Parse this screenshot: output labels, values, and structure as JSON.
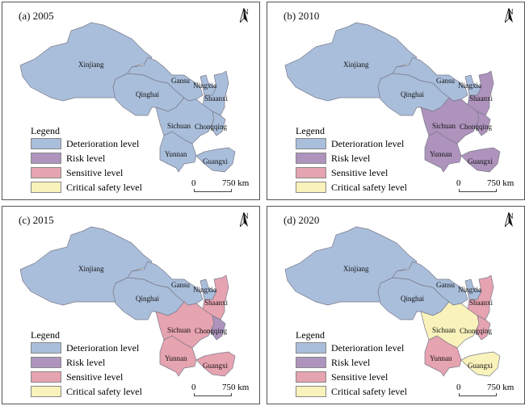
{
  "colors": {
    "deterioration": "#a9bedb",
    "risk": "#ae93bd",
    "sensitive": "#e6a3b0",
    "critical": "#f9f2ba"
  },
  "legend": {
    "title": "Legend",
    "items": [
      {
        "key": "deterioration",
        "label": "Deterioration level"
      },
      {
        "key": "risk",
        "label": "Risk level"
      },
      {
        "key": "sensitive",
        "label": "Sensitive level"
      },
      {
        "key": "critical",
        "label": "Critical safety level"
      }
    ]
  },
  "scale": {
    "zero": "0",
    "distance": "750 km"
  },
  "north_label": "N",
  "provinces": [
    "Xinjiang",
    "Qinghai",
    "Gansu",
    "Ningxia",
    "Shaanxi",
    "Sichuan",
    "Chongqing",
    "Yunnan",
    "Guangxi"
  ],
  "panels": [
    {
      "title": "(a) 2005",
      "levels": {
        "Xinjiang": "deterioration",
        "Qinghai": "deterioration",
        "Gansu": "deterioration",
        "Ningxia": "deterioration",
        "Shaanxi": "deterioration",
        "Sichuan": "deterioration",
        "Chongqing": "deterioration",
        "Yunnan": "deterioration",
        "Guangxi": "deterioration"
      }
    },
    {
      "title": "(b) 2010",
      "levels": {
        "Xinjiang": "deterioration",
        "Qinghai": "deterioration",
        "Gansu": "deterioration",
        "Ningxia": "deterioration",
        "Shaanxi": "risk",
        "Sichuan": "risk",
        "Chongqing": "risk",
        "Yunnan": "risk",
        "Guangxi": "risk"
      }
    },
    {
      "title": "(c) 2015",
      "levels": {
        "Xinjiang": "deterioration",
        "Qinghai": "deterioration",
        "Gansu": "deterioration",
        "Ningxia": "deterioration",
        "Shaanxi": "sensitive",
        "Sichuan": "sensitive",
        "Chongqing": "risk",
        "Yunnan": "sensitive",
        "Guangxi": "sensitive"
      }
    },
    {
      "title": "(d) 2020",
      "levels": {
        "Xinjiang": "deterioration",
        "Qinghai": "deterioration",
        "Gansu": "deterioration",
        "Ningxia": "deterioration",
        "Shaanxi": "sensitive",
        "Sichuan": "critical",
        "Chongqing": "sensitive",
        "Yunnan": "sensitive",
        "Guangxi": "critical"
      }
    }
  ]
}
